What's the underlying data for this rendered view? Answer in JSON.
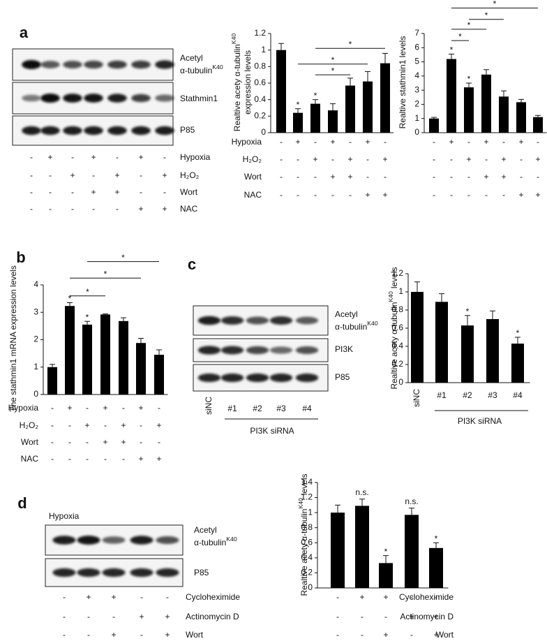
{
  "chart_data": [
    {
      "type": "bar",
      "ylabel": {
        "text": "Realtive acety α-tubulin",
        "sup": "K40",
        "rest": "expression levels"
      },
      "values": [
        1.0,
        0.24,
        0.35,
        0.27,
        0.57,
        0.62,
        0.84
      ],
      "errors": [
        0.08,
        0.05,
        0.05,
        0.08,
        0.09,
        0.12,
        0.12
      ],
      "color": "#000000",
      "ylim": [
        0,
        1.2
      ],
      "yticks": [
        0,
        0.2,
        0.4,
        0.6,
        0.8,
        1,
        1.2
      ],
      "annotations": [
        "*",
        "*",
        "*",
        "*",
        "*"
      ],
      "conditions": [
        {
          "name": "Hypoxia",
          "marks": [
            "-",
            "+",
            "-",
            "+",
            "-",
            "+",
            "-"
          ]
        },
        {
          "name": "H₂O₂",
          "marks": [
            "-",
            "-",
            "+",
            "-",
            "+",
            "-",
            "+"
          ]
        },
        {
          "name": "Wort",
          "marks": [
            "-",
            "-",
            "-",
            "+",
            "+",
            "-",
            "-"
          ]
        },
        {
          "name": "NAC",
          "marks": [
            "-",
            "-",
            "-",
            "-",
            "-",
            "+",
            "+"
          ]
        }
      ]
    },
    {
      "type": "bar",
      "ylabel": {
        "text": "Realtive stathmin1 levels"
      },
      "values": [
        1.0,
        5.2,
        3.2,
        4.1,
        2.55,
        2.15,
        1.1
      ],
      "errors": [
        0.08,
        0.35,
        0.3,
        0.35,
        0.4,
        0.2,
        0.12
      ],
      "color": "#000000",
      "ylim": [
        0,
        7
      ],
      "yticks": [
        0,
        1,
        2,
        3,
        4,
        5,
        6,
        7
      ],
      "annotations": [
        "*",
        "*",
        "*",
        "*",
        "*",
        "*"
      ],
      "conditions": [
        {
          "marks": [
            "-",
            "+",
            "-",
            "+",
            "-",
            "+",
            "-"
          ]
        },
        {
          "marks": [
            "-",
            "-",
            "+",
            "-",
            "+",
            "-",
            "+"
          ]
        },
        {
          "marks": [
            "-",
            "-",
            "-",
            "+",
            "+",
            "-",
            "-"
          ]
        },
        {
          "marks": [
            "-",
            "-",
            "-",
            "-",
            "-",
            "+",
            "+"
          ]
        }
      ]
    },
    {
      "type": "bar",
      "ylabel": {
        "text": "The stathmin1 mRNA expression levels"
      },
      "values": [
        1.0,
        3.23,
        2.55,
        2.92,
        2.68,
        1.88,
        1.45
      ],
      "errors": [
        0.1,
        0.12,
        0.12,
        0.02,
        0.12,
        0.17,
        0.18
      ],
      "color": "#000000",
      "ylim": [
        0,
        4
      ],
      "yticks": [
        0,
        1,
        2,
        3,
        4
      ],
      "annotations": [
        "*",
        "*",
        "*",
        "*",
        "*"
      ],
      "conditions": [
        {
          "name": "Hypoxia",
          "marks": [
            "-",
            "+",
            "-",
            "+",
            "-",
            "+",
            "-"
          ]
        },
        {
          "name": "H₂O₂",
          "marks": [
            "-",
            "-",
            "+",
            "-",
            "+",
            "-",
            "+"
          ]
        },
        {
          "name": "Wort",
          "marks": [
            "-",
            "-",
            "-",
            "+",
            "+",
            "-",
            "-"
          ]
        },
        {
          "name": "NAC",
          "marks": [
            "-",
            "-",
            "-",
            "-",
            "-",
            "+",
            "+"
          ]
        }
      ]
    },
    {
      "type": "bar",
      "ylabel": {
        "text": "Realtive acety α-tubulin",
        "sup": "K40",
        "rest": "levels"
      },
      "categories": [
        "siNC",
        "#1",
        "#2",
        "#3",
        "#4"
      ],
      "group_label": "PI3K siRNA",
      "values": [
        1.0,
        0.89,
        0.63,
        0.7,
        0.43
      ],
      "errors": [
        0.11,
        0.09,
        0.11,
        0.09,
        0.07
      ],
      "color": "#000000",
      "ylim": [
        0,
        1.2
      ],
      "yticks": [
        0,
        0.2,
        0.4,
        0.6,
        0.8,
        1,
        1.2
      ],
      "annotations": [
        "*",
        "*"
      ]
    },
    {
      "type": "bar",
      "ylabel": {
        "text": "Realtive acety α-tubulin",
        "sup": "K40",
        "rest": "levels"
      },
      "values": [
        1.0,
        1.09,
        0.33,
        0.97,
        0.53
      ],
      "errors": [
        0.1,
        0.09,
        0.1,
        0.09,
        0.07
      ],
      "color": "#000000",
      "ylim": [
        0,
        1.4
      ],
      "yticks": [
        0,
        0.2,
        0.4,
        0.6,
        0.8,
        1,
        1.2,
        1.4
      ],
      "annotations": [
        "n.s.",
        "*",
        "n.s.",
        "*"
      ],
      "conditions": [
        {
          "name": "Cycloheximide",
          "marks": [
            "-",
            "+",
            "+",
            "-",
            "-"
          ]
        },
        {
          "name": "Actinomycin D",
          "marks": [
            "-",
            "-",
            "-",
            "+",
            "+"
          ]
        },
        {
          "name": "Wort",
          "marks": [
            "-",
            "-",
            "+",
            "-",
            "+"
          ]
        }
      ]
    }
  ],
  "panel_labels": [
    "a",
    "b",
    "c",
    "d"
  ],
  "blot_a": {
    "labels": {
      "acetyl": "Acetyl",
      "tubulin": "α-tubulin",
      "sup": "K40",
      "stathmin": "Stathmin1",
      "p85": "P85"
    },
    "conditions": [
      {
        "name": "Hypoxia",
        "marks": [
          "-",
          "+",
          "-",
          "+",
          "-",
          "+",
          "-"
        ]
      },
      {
        "name": "H₂O₂",
        "marks": [
          "-",
          "-",
          "+",
          "-",
          "+",
          "-",
          "+"
        ]
      },
      {
        "name": "Wort",
        "marks": [
          "-",
          "-",
          "-",
          "+",
          "+",
          "-",
          "-"
        ]
      },
      {
        "name": "NAC",
        "marks": [
          "-",
          "-",
          "-",
          "-",
          "-",
          "+",
          "+"
        ]
      }
    ]
  },
  "blot_c": {
    "labels": {
      "acetyl": "Acetyl",
      "tubulin": "α-tubulin",
      "sup": "K40",
      "pi3k": "PI3K",
      "p85": "P85"
    },
    "lanes": [
      "siNC",
      "#1",
      "#2",
      "#3",
      "#4"
    ],
    "group_label": "PI3K siRNA"
  },
  "blot_d": {
    "title": "Hypoxia",
    "labels": {
      "acetyl": "Acetyl",
      "tubulin": "α-tubulin",
      "sup": "K40",
      "p85": "P85"
    },
    "conditions": [
      {
        "name": "Cycloheximide",
        "marks": [
          "-",
          "+",
          "+",
          "-",
          "-"
        ]
      },
      {
        "name": "Actinomycin D",
        "marks": [
          "-",
          "-",
          "-",
          "+",
          "+"
        ]
      },
      {
        "name": "Wort",
        "marks": [
          "-",
          "-",
          "+",
          "-",
          "+"
        ]
      }
    ]
  }
}
